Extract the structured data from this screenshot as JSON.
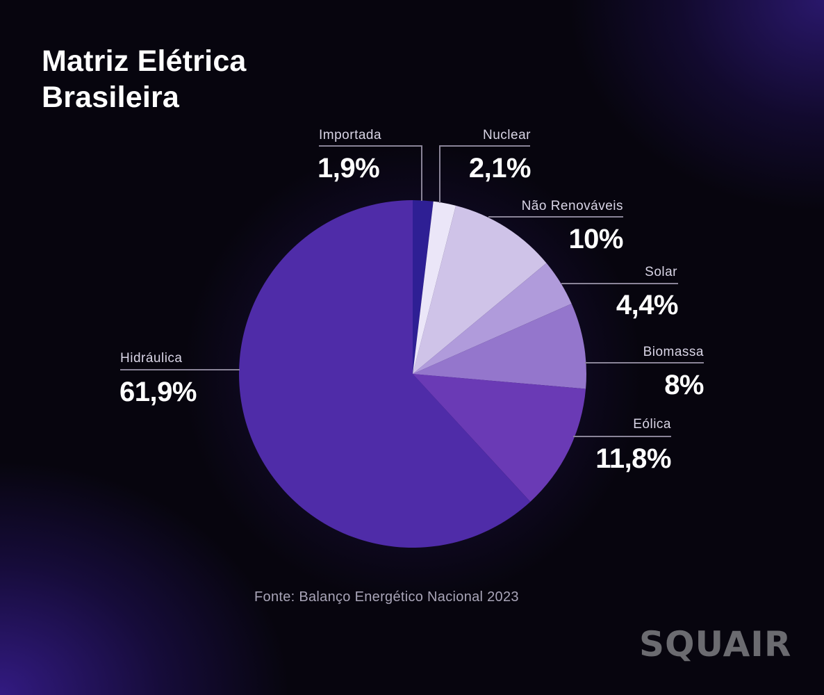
{
  "title": {
    "line1": "Matriz Elétrica",
    "line2": "Brasileira"
  },
  "source": "Fonte: Balanço Energético Nacional 2023",
  "logo": "SQUAIR",
  "labels": {
    "importada": {
      "name": "Importada",
      "value": "1,9%"
    },
    "nuclear": {
      "name": "Nuclear",
      "value": "2,1%"
    },
    "nao_renovaveis": {
      "name": "Não Renováveis",
      "value": "10%"
    },
    "solar": {
      "name": "Solar",
      "value": "4,4%"
    },
    "biomassa": {
      "name": "Biomassa",
      "value": "8%"
    },
    "eolica": {
      "name": "Eólica",
      "value": "11,8%"
    },
    "hidraulica": {
      "name": "Hidráulica",
      "value": "61,9%"
    }
  },
  "colors": {
    "background": "#07050e",
    "accent_glow": "#3a1e96",
    "importada": "#2e1f94",
    "nuclear": "#ebe6f8",
    "nao_renovaveis": "#cfc3e8",
    "solar": "#b09bdb",
    "biomassa": "#9476cc",
    "eolica": "#6a3ab5",
    "hidraulica": "#4f2ca8"
  },
  "chart_data": {
    "type": "pie",
    "title": "Matriz Elétrica Brasileira",
    "subtitle": "",
    "categories": [
      "Importada",
      "Nuclear",
      "Não Renováveis",
      "Solar",
      "Biomassa",
      "Eólica",
      "Hidráulica"
    ],
    "values": [
      1.9,
      2.1,
      10,
      4.4,
      8,
      11.8,
      61.9
    ],
    "value_labels": [
      "1,9%",
      "2,1%",
      "10%",
      "4,4%",
      "8%",
      "11,8%",
      "61,9%"
    ],
    "unit": "%",
    "start_angle": "12 o'clock",
    "direction": "clockwise",
    "legend": "none (direct labels with leader lines)",
    "annotations": [
      "Fonte: Balanço Energético Nacional 2023"
    ]
  }
}
